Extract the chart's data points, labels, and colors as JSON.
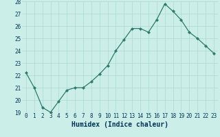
{
  "xlabel": "Humidex (Indice chaleur)",
  "x": [
    0,
    1,
    2,
    3,
    4,
    5,
    6,
    7,
    8,
    9,
    10,
    11,
    12,
    13,
    14,
    15,
    16,
    17,
    18,
    19,
    20,
    21,
    22,
    23
  ],
  "y": [
    22.2,
    21.0,
    19.4,
    19.0,
    19.9,
    20.8,
    21.0,
    21.0,
    21.5,
    22.1,
    22.8,
    24.0,
    24.9,
    25.8,
    25.8,
    25.5,
    26.5,
    27.8,
    27.2,
    26.5,
    25.5,
    25.0,
    24.4,
    23.8
  ],
  "line_color": "#2d7a6a",
  "marker": "D",
  "marker_size": 2.2,
  "bg_color": "#cceee8",
  "grid_color": "#aad8d0",
  "ylim": [
    19,
    28
  ],
  "yticks": [
    19,
    20,
    21,
    22,
    23,
    24,
    25,
    26,
    27,
    28
  ],
  "xticks": [
    0,
    1,
    2,
    3,
    4,
    5,
    6,
    7,
    8,
    9,
    10,
    11,
    12,
    13,
    14,
    15,
    16,
    17,
    18,
    19,
    20,
    21,
    22,
    23
  ],
  "tick_fontsize": 5.5,
  "xlabel_fontsize": 7.0,
  "label_color": "#003355",
  "axis_bg": "#cceee8",
  "linewidth": 0.9
}
